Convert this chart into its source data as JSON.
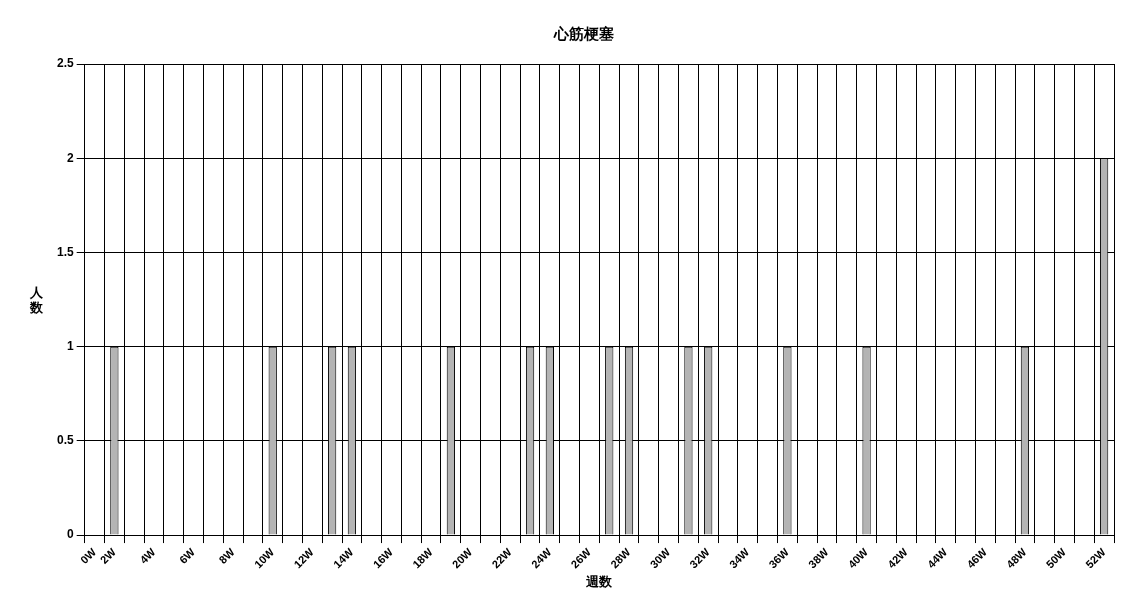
{
  "chart_data": {
    "type": "bar",
    "title": "心筋梗塞",
    "xlabel": "週数",
    "ylabel": "人数",
    "categories": [
      "0W",
      "2W",
      null,
      "4W",
      null,
      "6W",
      null,
      "8W",
      null,
      "10W",
      null,
      "12W",
      null,
      "14W",
      null,
      "16W",
      null,
      "18W",
      null,
      "20W",
      null,
      "22W",
      null,
      "24W",
      null,
      "26W",
      null,
      "28W",
      null,
      "30W",
      null,
      "32W",
      null,
      "34W",
      null,
      "36W",
      null,
      "38W",
      null,
      "40W",
      null,
      "42W",
      null,
      "44W",
      null,
      "46W",
      null,
      "48W",
      null,
      "50W",
      null,
      "52W"
    ],
    "values": [
      0,
      1,
      0,
      0,
      0,
      0,
      0,
      0,
      0,
      1,
      0,
      0,
      1,
      1,
      0,
      0,
      0,
      0,
      1,
      0,
      0,
      0,
      1,
      1,
      0,
      0,
      1,
      1,
      0,
      0,
      1,
      1,
      0,
      0,
      0,
      1,
      0,
      0,
      0,
      1,
      0,
      0,
      0,
      0,
      0,
      0,
      0,
      1,
      0,
      0,
      0,
      2
    ],
    "color": "#b4b4b4",
    "ylim": [
      0,
      2.5
    ],
    "yticks": [
      0,
      0.5,
      1,
      1.5,
      2,
      2.5
    ],
    "grid": true
  }
}
